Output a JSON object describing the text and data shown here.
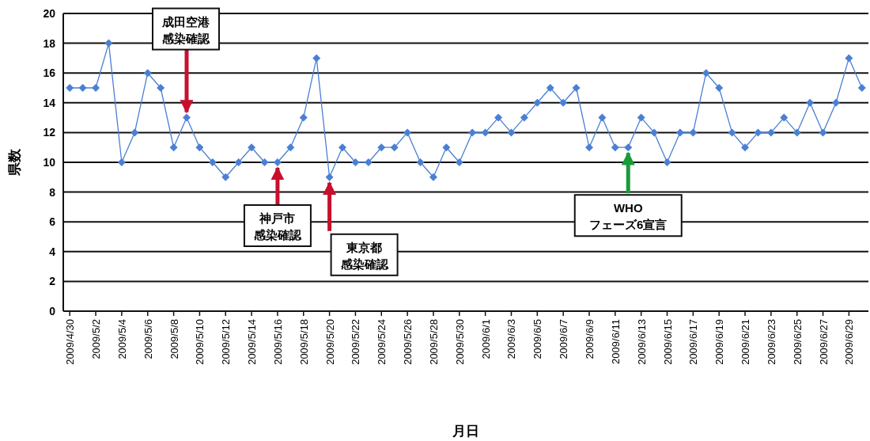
{
  "chart_data": {
    "type": "line",
    "xlabel": "月日",
    "ylabel": "県数",
    "x": [
      "2009-04-30",
      "2009-05-01",
      "2009-05-02",
      "2009-05-03",
      "2009-05-04",
      "2009-05-05",
      "2009-05-06",
      "2009-05-07",
      "2009-05-08",
      "2009-05-09",
      "2009-05-10",
      "2009-05-11",
      "2009-05-12",
      "2009-05-13",
      "2009-05-14",
      "2009-05-15",
      "2009-05-16",
      "2009-05-17",
      "2009-05-18",
      "2009-05-19",
      "2009-05-20",
      "2009-05-21",
      "2009-05-22",
      "2009-05-23",
      "2009-05-24",
      "2009-05-25",
      "2009-05-26",
      "2009-05-27",
      "2009-05-28",
      "2009-05-29",
      "2009-05-30",
      "2009-05-31",
      "2009-06-01",
      "2009-06-02",
      "2009-06-03",
      "2009-06-04",
      "2009-06-05",
      "2009-06-06",
      "2009-06-07",
      "2009-06-08",
      "2009-06-09",
      "2009-06-10",
      "2009-06-11",
      "2009-06-12",
      "2009-06-13",
      "2009-06-14",
      "2009-06-15",
      "2009-06-16",
      "2009-06-17",
      "2009-06-18",
      "2009-06-19",
      "2009-06-20",
      "2009-06-21",
      "2009-06-22",
      "2009-06-23",
      "2009-06-24",
      "2009-06-25",
      "2009-06-26",
      "2009-06-27",
      "2009-06-28",
      "2009-06-29",
      "2009-06-30"
    ],
    "series": [
      {
        "color": "#4a7fd4",
        "values": [
          15,
          15,
          15,
          18,
          10,
          12,
          16,
          15,
          11,
          13,
          11,
          10,
          9,
          10,
          11,
          10,
          10,
          11,
          13,
          17,
          9,
          11,
          10,
          10,
          11,
          11,
          12,
          10,
          9,
          11,
          10,
          12,
          12,
          13,
          12,
          13,
          14,
          15,
          14,
          15,
          11,
          13,
          11,
          11,
          13,
          12,
          10,
          12,
          12,
          16,
          15,
          12,
          11,
          12,
          12,
          13,
          12,
          14,
          12,
          14,
          17,
          15
        ]
      }
    ],
    "xlim": [
      "2009-04-29T12:00",
      "2009-06-30T12:00"
    ],
    "xticks": [
      {
        "value": "2009-04-30",
        "label": "2009/4/30"
      },
      {
        "value": "2009-05-02",
        "label": "2009/5/2"
      },
      {
        "value": "2009-05-04",
        "label": "2009/5/4"
      },
      {
        "value": "2009-05-06",
        "label": "2009/5/6"
      },
      {
        "value": "2009-05-08",
        "label": "2009/5/8"
      },
      {
        "value": "2009-05-10",
        "label": "2009/5/10"
      },
      {
        "value": "2009-05-12",
        "label": "2009/5/12"
      },
      {
        "value": "2009-05-14",
        "label": "2009/5/14"
      },
      {
        "value": "2009-05-16",
        "label": "2009/5/16"
      },
      {
        "value": "2009-05-18",
        "label": "2009/5/18"
      },
      {
        "value": "2009-05-20",
        "label": "2009/5/20"
      },
      {
        "value": "2009-05-22",
        "label": "2009/5/22"
      },
      {
        "value": "2009-05-24",
        "label": "2009/5/24"
      },
      {
        "value": "2009-05-26",
        "label": "2009/5/26"
      },
      {
        "value": "2009-05-28",
        "label": "2009/5/28"
      },
      {
        "value": "2009-05-30",
        "label": "2009/5/30"
      },
      {
        "value": "2009-06-01",
        "label": "2009/6/1"
      },
      {
        "value": "2009-06-03",
        "label": "2009/6/3"
      },
      {
        "value": "2009-06-05",
        "label": "2009/6/5"
      },
      {
        "value": "2009-06-07",
        "label": "2009/6/7"
      },
      {
        "value": "2009-06-09",
        "label": "2009/6/9"
      },
      {
        "value": "2009-06-11",
        "label": "2009/6/11"
      },
      {
        "value": "2009-06-13",
        "label": "2009/6/13"
      },
      {
        "value": "2009-06-15",
        "label": "2009/6/15"
      },
      {
        "value": "2009-06-17",
        "label": "2009/6/17"
      },
      {
        "value": "2009-06-19",
        "label": "2009/6/19"
      },
      {
        "value": "2009-06-21",
        "label": "2009/6/21"
      },
      {
        "value": "2009-06-23",
        "label": "2009/6/23"
      },
      {
        "value": "2009-06-25",
        "label": "2009/6/25"
      },
      {
        "value": "2009-06-27",
        "label": "2009/6/27"
      },
      {
        "value": "2009-06-29",
        "label": "2009/6/29"
      }
    ],
    "ylim": [
      0,
      20
    ],
    "yticks": [
      0,
      2,
      4,
      6,
      8,
      10,
      12,
      14,
      16,
      18,
      20
    ],
    "grid": "y",
    "marker": "diamond",
    "line_style": "solid",
    "annotations": [
      {
        "text": "成田空港感染確認",
        "x": "2009-05-09",
        "y": 13
      },
      {
        "text": "神戸市感染確認",
        "x": "2009-05-16",
        "y": 10
      },
      {
        "text": "東京都感染確認",
        "x": "2009-05-20",
        "y": 9
      },
      {
        "text": "WHOフェーズ6宣言",
        "x": "2009-06-12",
        "y": 11
      }
    ]
  }
}
